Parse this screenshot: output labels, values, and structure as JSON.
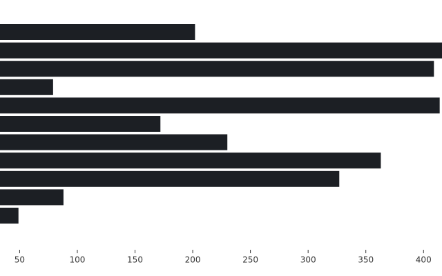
{
  "chart_data": {
    "type": "barh",
    "values": [
      202,
      418,
      409,
      79,
      414,
      172,
      230,
      363,
      327,
      88,
      49
    ],
    "color": "#1c1f24",
    "xlim": [
      33,
      416
    ],
    "xticks": [
      50,
      100,
      150,
      200,
      250,
      300,
      350,
      400
    ]
  }
}
